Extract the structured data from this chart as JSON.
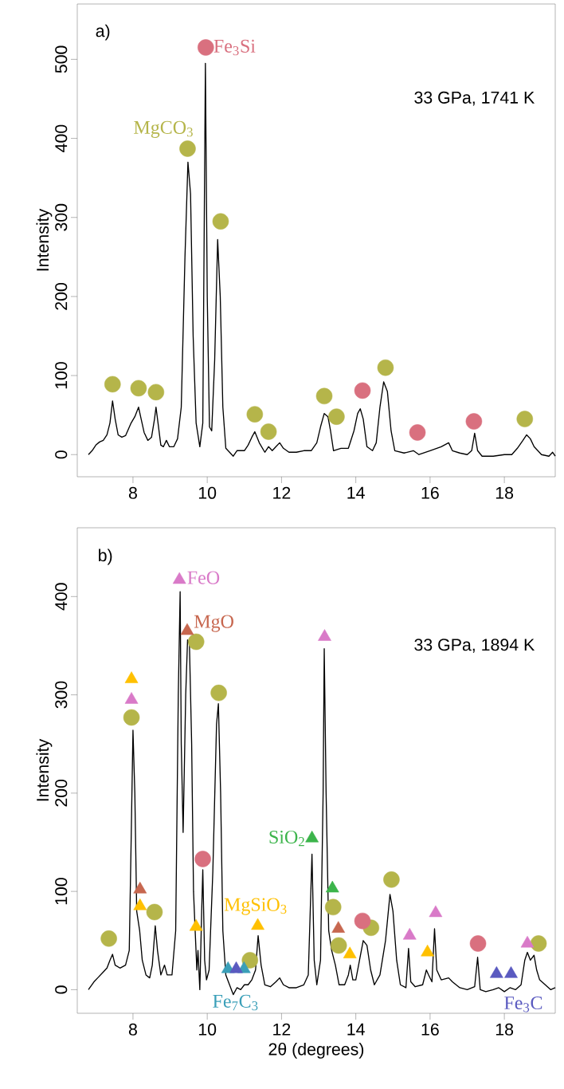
{
  "chart_data": [
    {
      "type": "line",
      "ylabel": "Intensity",
      "xlim": [
        6.5,
        19.37
      ],
      "ylim": [
        -28,
        570
      ],
      "xticks": [
        8,
        10,
        12,
        14,
        16,
        18
      ],
      "yticks": [
        0,
        100,
        200,
        300,
        400,
        500
      ],
      "annotations": [
        "a)",
        "33 GPa, 1741 K"
      ],
      "series": [
        {
          "color": "#000000",
          "x": [
            6.8,
            6.9,
            7.0,
            7.1,
            7.2,
            7.3,
            7.38,
            7.45,
            7.52,
            7.6,
            7.7,
            7.8,
            7.95,
            8.05,
            8.15,
            8.22,
            8.3,
            8.4,
            8.5,
            8.58,
            8.62,
            8.68,
            8.75,
            8.82,
            8.9,
            8.98,
            9.1,
            9.2,
            9.3,
            9.4,
            9.48,
            9.55,
            9.62,
            9.7,
            9.8,
            9.88,
            9.95,
            10.0,
            10.06,
            10.12,
            10.2,
            10.28,
            10.35,
            10.42,
            10.5,
            10.6,
            10.7,
            10.8,
            11.0,
            11.1,
            11.2,
            11.28,
            11.4,
            11.55,
            11.65,
            11.75,
            11.85,
            11.95,
            12.05,
            12.2,
            12.4,
            12.6,
            12.8,
            12.95,
            13.05,
            13.15,
            13.25,
            13.32,
            13.4,
            13.6,
            13.8,
            13.95,
            14.05,
            14.12,
            14.2,
            14.3,
            14.45,
            14.55,
            14.65,
            14.75,
            14.85,
            14.95,
            15.05,
            15.3,
            15.55,
            15.7,
            16.0,
            16.3,
            16.5,
            16.6,
            16.8,
            17.0,
            17.12,
            17.2,
            17.28,
            17.4,
            17.7,
            18.0,
            18.2,
            18.35,
            18.5,
            18.6,
            18.7,
            18.8,
            19.0,
            19.2,
            19.3,
            19.37
          ],
          "values": [
            0,
            5,
            12,
            16,
            18,
            25,
            40,
            68,
            45,
            25,
            22,
            24,
            40,
            48,
            60,
            45,
            28,
            18,
            22,
            45,
            60,
            38,
            12,
            10,
            18,
            10,
            10,
            20,
            60,
            250,
            370,
            330,
            150,
            40,
            10,
            40,
            495,
            200,
            35,
            30,
            120,
            272,
            200,
            60,
            8,
            3,
            -2,
            5,
            5,
            12,
            22,
            29,
            15,
            3,
            10,
            5,
            10,
            15,
            8,
            3,
            3,
            5,
            5,
            15,
            35,
            52,
            48,
            30,
            5,
            8,
            8,
            30,
            52,
            58,
            45,
            10,
            5,
            15,
            60,
            92,
            80,
            30,
            5,
            2,
            5,
            0,
            5,
            10,
            15,
            5,
            2,
            0,
            5,
            27,
            5,
            -2,
            -2,
            0,
            0,
            8,
            18,
            25,
            20,
            10,
            0,
            -2,
            3,
            -2
          ]
        },
        {
          "type": "scatter",
          "name": "MgCO$_{3}$",
          "color": "#b5b54a",
          "marker": "circle",
          "x": [
            7.45,
            8.15,
            8.62,
            9.47,
            10.36,
            11.28,
            11.65,
            13.15,
            13.48,
            14.8,
            18.55
          ],
          "values": [
            89,
            84,
            79,
            387,
            295,
            51,
            29,
            74,
            48,
            110,
            45
          ]
        },
        {
          "type": "scatter",
          "name": "Fe$_{3}$Si",
          "color": "#d9707f",
          "marker": "circle",
          "x": [
            9.96,
            14.18,
            15.66,
            17.18
          ],
          "values": [
            515,
            81,
            28,
            42
          ]
        }
      ]
    },
    {
      "type": "line",
      "xlabel": "2θ (degrees)",
      "ylabel": "Intensity",
      "xlim": [
        6.5,
        19.37
      ],
      "ylim": [
        -24,
        470
      ],
      "xticks": [
        8,
        10,
        12,
        14,
        16,
        18
      ],
      "yticks": [
        0,
        100,
        200,
        300,
        400
      ],
      "annotations": [
        "b)",
        "33 GPa, 1894 K"
      ],
      "series": [
        {
          "color": "#000000",
          "x": [
            6.8,
            6.95,
            7.05,
            7.2,
            7.3,
            7.38,
            7.45,
            7.52,
            7.65,
            7.8,
            7.9,
            7.95,
            8.0,
            8.05,
            8.1,
            8.18,
            8.25,
            8.35,
            8.45,
            8.52,
            8.6,
            8.66,
            8.75,
            8.85,
            8.92,
            9.05,
            9.15,
            9.22,
            9.27,
            9.3,
            9.35,
            9.42,
            9.47,
            9.52,
            9.58,
            9.63,
            9.68,
            9.72,
            9.75,
            9.8,
            9.85,
            9.88,
            9.93,
            9.98,
            10.05,
            10.15,
            10.25,
            10.3,
            10.36,
            10.42,
            10.5,
            10.6,
            10.7,
            10.8,
            10.9,
            11.0,
            11.1,
            11.2,
            11.3,
            11.37,
            11.45,
            11.55,
            11.7,
            11.85,
            11.95,
            12.05,
            12.2,
            12.4,
            12.6,
            12.72,
            12.82,
            12.88,
            12.95,
            13.05,
            13.12,
            13.15,
            13.2,
            13.27,
            13.35,
            13.45,
            13.55,
            13.7,
            13.8,
            13.85,
            13.92,
            14.0,
            14.1,
            14.2,
            14.3,
            14.4,
            14.5,
            14.65,
            14.8,
            14.92,
            15.0,
            15.1,
            15.2,
            15.35,
            15.42,
            15.48,
            15.6,
            15.8,
            15.9,
            15.96,
            16.05,
            16.12,
            16.18,
            16.3,
            16.5,
            16.6,
            16.8,
            17.0,
            17.2,
            17.28,
            17.35,
            17.5,
            17.7,
            17.85,
            18.0,
            18.15,
            18.3,
            18.45,
            18.55,
            18.62,
            18.7,
            18.8,
            18.87,
            18.95,
            19.1,
            19.25,
            19.37
          ],
          "values": [
            0,
            8,
            12,
            18,
            22,
            30,
            36,
            25,
            22,
            25,
            40,
            150,
            264,
            200,
            80,
            60,
            30,
            15,
            12,
            25,
            65,
            40,
            15,
            25,
            15,
            15,
            60,
            300,
            405,
            250,
            160,
            300,
            356,
            352,
            250,
            100,
            55,
            20,
            40,
            0,
            80,
            122,
            30,
            10,
            20,
            120,
            270,
            291,
            200,
            60,
            15,
            5,
            -5,
            2,
            0,
            5,
            5,
            10,
            20,
            55,
            25,
            5,
            3,
            8,
            12,
            5,
            2,
            2,
            5,
            15,
            138,
            30,
            5,
            30,
            200,
            347,
            200,
            60,
            40,
            25,
            5,
            5,
            15,
            25,
            10,
            10,
            30,
            50,
            45,
            20,
            5,
            15,
            50,
            97,
            80,
            30,
            5,
            2,
            42,
            8,
            3,
            5,
            20,
            15,
            8,
            62,
            20,
            10,
            12,
            8,
            2,
            0,
            3,
            33,
            0,
            -2,
            0,
            2,
            -2,
            2,
            0,
            5,
            30,
            38,
            30,
            35,
            20,
            10,
            5,
            0,
            2
          ]
        },
        {
          "type": "scatter",
          "color": "#b5b54a",
          "marker": "circle",
          "x": [
            7.35,
            7.96,
            8.58,
            9.7,
            10.31,
            11.15,
            13.39,
            13.54,
            14.41,
            14.96,
            18.92
          ],
          "values": [
            52,
            277,
            79,
            354,
            302,
            30,
            84,
            45,
            63,
            112,
            47
          ]
        },
        {
          "type": "scatter",
          "color": "#d9707f",
          "marker": "circle",
          "x": [
            9.88,
            14.18,
            17.29
          ],
          "values": [
            133,
            70,
            47
          ]
        },
        {
          "type": "scatter",
          "name": "FeO",
          "color": "#d97ac8",
          "marker": "triangle",
          "x": [
            7.96,
            9.25,
            13.16,
            15.45,
            16.15,
            18.62
          ],
          "values": [
            295,
            417,
            359,
            55,
            78,
            47
          ]
        },
        {
          "type": "scatter",
          "name": "MgO",
          "color": "#c7674f",
          "marker": "triangle",
          "x": [
            8.19,
            9.46,
            13.53
          ],
          "values": [
            102,
            365,
            62
          ]
        },
        {
          "type": "scatter",
          "name": "MgSiO$_{3}$",
          "color": "#ffc000",
          "marker": "triangle",
          "x": [
            7.96,
            8.19,
            9.7,
            11.36,
            13.84,
            15.93
          ],
          "values": [
            316,
            85,
            64,
            65,
            36,
            38
          ]
        },
        {
          "type": "scatter",
          "name": "SiO$_{2}$",
          "color": "#3cb44b",
          "marker": "triangle",
          "x": [
            12.82,
            13.37
          ],
          "values": [
            154,
            103
          ]
        },
        {
          "type": "scatter",
          "name": "Fe$_{7}$C$_{3}$",
          "color": "#3a9fb8",
          "marker": "triangle",
          "x": [
            10.56,
            10.99
          ],
          "values": [
            21,
            21
          ]
        },
        {
          "type": "scatter",
          "name": "Fe$_{3}$C",
          "color": "#5a5ac0",
          "marker": "triangle",
          "x": [
            10.78,
            17.79,
            18.18
          ],
          "values": [
            21,
            16,
            16
          ]
        }
      ]
    }
  ]
}
